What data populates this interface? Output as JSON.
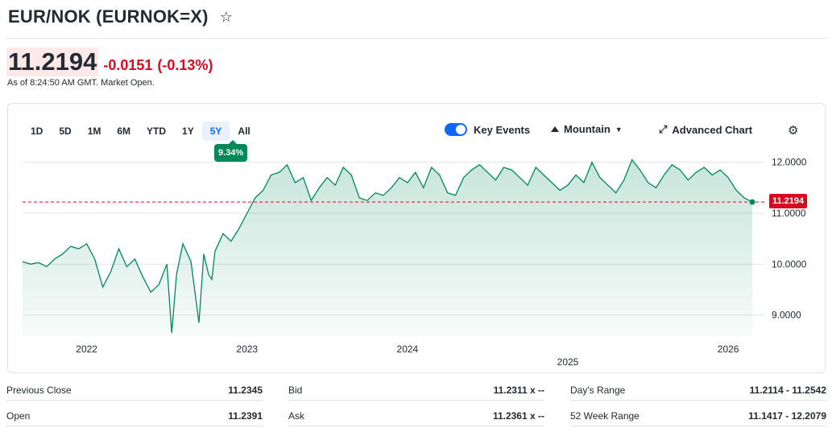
{
  "header": {
    "title": "EUR/NOK (EURNOK=X)",
    "star_icon": "star-outline-icon"
  },
  "quote": {
    "price": "11.2194",
    "change": "-0.0151",
    "change_pct": "(-0.13%)",
    "as_of": "As of 8:24:50 AM GMT. Market Open."
  },
  "colors": {
    "down": "#d60a22",
    "up": "#00875a",
    "accent": "#0f69ff"
  },
  "chart_controls": {
    "ranges": [
      "1D",
      "5D",
      "1M",
      "6M",
      "YTD",
      "1Y",
      "5Y",
      "All"
    ],
    "active_range": "5Y",
    "range_change": "9.34%",
    "key_events_label": "Key Events",
    "key_events_on": true,
    "chart_type_label": "Mountain",
    "advanced_label": "Advanced Chart"
  },
  "chart_data": {
    "type": "area",
    "x_tick_labels": [
      "2022",
      "2023",
      "2024",
      "2025",
      "2026"
    ],
    "y_tick_labels": [
      "12.0000",
      "11.0000",
      "10.0000",
      "9.0000"
    ],
    "ylim": [
      8.6,
      12.2
    ],
    "reference_line": 11.2194,
    "last_value_label": "11.2194",
    "grid": true,
    "x": [
      2021.6,
      2021.65,
      2021.7,
      2021.75,
      2021.8,
      2021.85,
      2021.9,
      2021.95,
      2022.0,
      2022.05,
      2022.1,
      2022.15,
      2022.2,
      2022.25,
      2022.3,
      2022.35,
      2022.4,
      2022.45,
      2022.5,
      2022.53,
      2022.56,
      2022.6,
      2022.65,
      2022.7,
      2022.73,
      2022.76,
      2022.78,
      2022.8,
      2022.85,
      2022.9,
      2022.95,
      2023.0,
      2023.05,
      2023.1,
      2023.15,
      2023.2,
      2023.25,
      2023.3,
      2023.35,
      2023.4,
      2023.45,
      2023.5,
      2023.55,
      2023.6,
      2023.65,
      2023.7,
      2023.75,
      2023.8,
      2023.85,
      2023.9,
      2023.95,
      2024.0,
      2024.05,
      2024.1,
      2024.15,
      2024.2,
      2024.25,
      2024.3,
      2024.35,
      2024.4,
      2024.45,
      2024.5,
      2024.55,
      2024.6,
      2024.65,
      2024.7,
      2024.75,
      2024.8,
      2024.85,
      2024.9,
      2024.95,
      2025.0,
      2025.05,
      2025.1,
      2025.15,
      2025.2,
      2025.25,
      2025.3,
      2025.35,
      2025.4,
      2025.45,
      2025.5,
      2025.55,
      2025.6,
      2025.65,
      2025.7,
      2025.75,
      2025.8,
      2025.85,
      2025.9,
      2025.95,
      2026.0,
      2026.05,
      2026.1,
      2026.15
    ],
    "values": [
      10.05,
      10.0,
      10.03,
      9.95,
      10.1,
      10.2,
      10.35,
      10.3,
      10.4,
      10.1,
      9.55,
      9.85,
      10.3,
      9.95,
      10.1,
      9.75,
      9.45,
      9.6,
      10.0,
      8.65,
      9.8,
      10.4,
      10.05,
      8.85,
      10.2,
      9.8,
      9.7,
      10.25,
      10.6,
      10.45,
      10.7,
      11.0,
      11.3,
      11.45,
      11.75,
      11.8,
      11.95,
      11.6,
      11.7,
      11.25,
      11.5,
      11.7,
      11.55,
      11.9,
      11.75,
      11.3,
      11.25,
      11.4,
      11.35,
      11.5,
      11.7,
      11.6,
      11.8,
      11.5,
      11.9,
      11.75,
      11.4,
      11.35,
      11.7,
      11.85,
      11.95,
      11.8,
      11.65,
      11.9,
      11.85,
      11.7,
      11.55,
      11.9,
      11.75,
      11.6,
      11.45,
      11.55,
      11.75,
      11.6,
      12.0,
      11.7,
      11.55,
      11.4,
      11.65,
      12.05,
      11.85,
      11.6,
      11.5,
      11.75,
      11.95,
      11.85,
      11.65,
      11.8,
      11.9,
      11.75,
      11.85,
      11.7,
      11.45,
      11.3,
      11.22
    ]
  },
  "stats": {
    "previous_close_label": "Previous Close",
    "previous_close": "11.2345",
    "open_label": "Open",
    "open": "11.2391",
    "bid_label": "Bid",
    "bid": "11.2311 x --",
    "ask_label": "Ask",
    "ask": "11.2361 x --",
    "days_range_label": "Day's Range",
    "days_range": "11.2114 - 11.2542",
    "week52_label": "52 Week Range",
    "week52": "11.1417 - 12.2079"
  }
}
